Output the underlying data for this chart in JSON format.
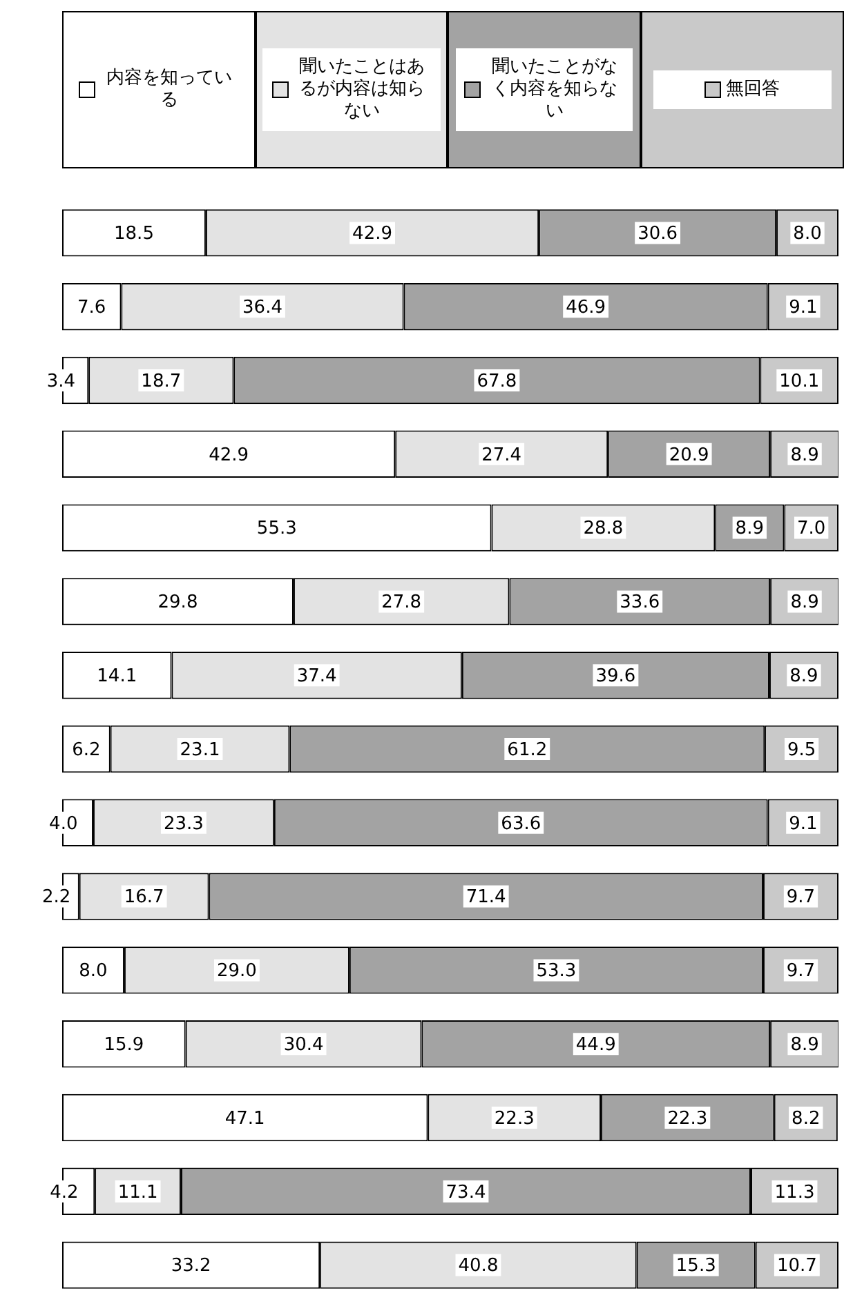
{
  "chart_data": {
    "type": "bar",
    "orientation": "horizontal",
    "stacked": true,
    "legend": "top",
    "tick_labels": false,
    "xlim": [
      0,
      100
    ],
    "categories": [
      null,
      null,
      null,
      null,
      null,
      null,
      null,
      null,
      null,
      null,
      null,
      null,
      null,
      null,
      null
    ],
    "series": [
      {
        "name": "内容を知っている",
        "color": "#ffffff",
        "values": [
          18.5,
          7.6,
          3.4,
          42.9,
          55.3,
          29.8,
          14.1,
          6.2,
          4.0,
          2.2,
          8.0,
          15.9,
          47.1,
          4.2,
          33.2
        ],
        "value_labels": [
          "18.5",
          "7.6",
          "3.4",
          "42.9",
          "55.3",
          "29.8",
          "14.1",
          "6.2",
          "4.0",
          "2.2",
          "8.0",
          "15.9",
          "47.1",
          "4.2",
          "33.2"
        ]
      },
      {
        "name": "聞いたことはあるが内容は知らない",
        "color": "#e3e3e3",
        "values": [
          42.9,
          36.4,
          18.7,
          27.4,
          28.8,
          27.8,
          37.4,
          23.1,
          23.3,
          16.7,
          29.0,
          30.4,
          22.3,
          11.1,
          40.8
        ],
        "value_labels": [
          "42.9",
          "36.4",
          "18.7",
          "27.4",
          "28.8",
          "27.8",
          "37.4",
          "23.1",
          "23.3",
          "16.7",
          "29.0",
          "30.4",
          "22.3",
          "11.1",
          "40.8"
        ]
      },
      {
        "name": "聞いたことがなく内容を知らない",
        "color": "#a3a3a3",
        "values": [
          30.6,
          46.9,
          67.8,
          20.9,
          8.9,
          33.6,
          39.6,
          61.2,
          63.6,
          71.4,
          53.3,
          44.9,
          22.3,
          73.4,
          15.3
        ],
        "value_labels": [
          "30.6",
          "46.9",
          "67.8",
          "20.9",
          "8.9",
          "33.6",
          "39.6",
          "61.2",
          "63.6",
          "71.4",
          "53.3",
          "44.9",
          "22.3",
          "73.4",
          "15.3"
        ]
      },
      {
        "name": "無回答",
        "color": "#c9c9c9",
        "values": [
          8.0,
          9.1,
          10.1,
          8.9,
          7.0,
          8.9,
          8.9,
          9.5,
          9.1,
          9.7,
          9.7,
          8.9,
          8.2,
          11.3,
          10.7
        ],
        "value_labels": [
          "8.0",
          "9.1",
          "10.1",
          "8.9",
          "7.0",
          "8.9",
          "8.9",
          "9.5",
          "9.1",
          "9.7",
          "9.7",
          "8.9",
          "8.2",
          "11.3",
          "10.7"
        ]
      }
    ]
  }
}
